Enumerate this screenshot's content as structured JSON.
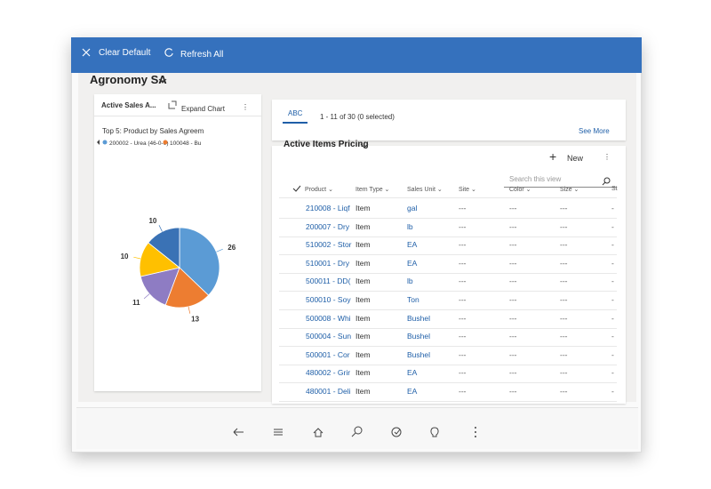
{
  "toolbar": {
    "clear_default": "Clear Default",
    "refresh_all": "Refresh All"
  },
  "header": {
    "title": "Agronomy SA"
  },
  "chart_panel": {
    "tab": "Active Sales A...",
    "expand": "Expand Chart"
  },
  "chart_data": {
    "type": "pie",
    "title": "Top 5: Product by Sales Agreem",
    "categories": [
      "200002 - Urea (46-0-0)",
      "100048 - Bu",
      null,
      null,
      null
    ],
    "values": [
      26,
      13,
      11,
      10,
      10
    ],
    "colors": [
      "#5b9bd5",
      "#ed7d31",
      "#8e7cc3",
      "#ffc000",
      "#3a72b5"
    ]
  },
  "commands": {
    "tab": "ABC",
    "count": "1 - 11 of 30 (0 selected)",
    "see_more": "See More"
  },
  "grid": {
    "title": "Active Items Pricing",
    "new": "New",
    "search": "Search this view",
    "columns": [
      "Product",
      "Item Type",
      "Sales Unit",
      "Site",
      "Color",
      "Size",
      "St"
    ],
    "rows": [
      [
        "210008 - Liqf",
        "Item",
        "gal",
        "---",
        "---",
        "---",
        "-"
      ],
      [
        "200007 - Dry",
        "Item",
        "lb",
        "---",
        "---",
        "---",
        "-"
      ],
      [
        "510002 - Stor",
        "Item",
        "EA",
        "---",
        "---",
        "---",
        "-"
      ],
      [
        "510001 - Dry",
        "Item",
        "EA",
        "---",
        "---",
        "---",
        "-"
      ],
      [
        "500011 - DD(",
        "Item",
        "lb",
        "---",
        "---",
        "---",
        "-"
      ],
      [
        "500010 - Soy",
        "Item",
        "Ton",
        "---",
        "---",
        "---",
        "-"
      ],
      [
        "500008 - Whi",
        "Item",
        "Bushel",
        "---",
        "---",
        "---",
        "-"
      ],
      [
        "500004 - Sun",
        "Item",
        "Bushel",
        "---",
        "---",
        "---",
        "-"
      ],
      [
        "500001 - Cor",
        "Item",
        "Bushel",
        "---",
        "---",
        "---",
        "-"
      ],
      [
        "480002 - Grir",
        "Item",
        "EA",
        "---",
        "---",
        "---",
        "-"
      ],
      [
        "480001 - Deli",
        "Item",
        "EA",
        "---",
        "---",
        "---",
        "-"
      ]
    ]
  }
}
